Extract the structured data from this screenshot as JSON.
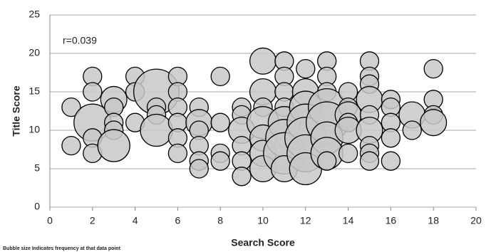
{
  "chart_data": {
    "type": "bubble",
    "x_label": "Search Score",
    "y_label": "Title Score",
    "annotation": "r=0.039",
    "footnote": "Bubble size Indicates frequency at that data point",
    "xlim": [
      0,
      20
    ],
    "xticks": [
      0,
      2,
      4,
      6,
      8,
      10,
      12,
      14,
      16,
      18,
      20
    ],
    "ylim": [
      0,
      25
    ],
    "yticks": [
      0,
      5,
      10,
      15,
      20,
      25
    ],
    "grid": true,
    "color": "#c8c8c8",
    "x": [
      1,
      1,
      2,
      2,
      2,
      2,
      2,
      3,
      3,
      3,
      3,
      3,
      4,
      4,
      4,
      5,
      5,
      5,
      5,
      6,
      6,
      6,
      6,
      6,
      6,
      7,
      7,
      7,
      7,
      7,
      7,
      8,
      8,
      8,
      8,
      9,
      9,
      9,
      9,
      9,
      9,
      10,
      10,
      10,
      10,
      10,
      10,
      10,
      11,
      11,
      11,
      11,
      11,
      11,
      11,
      11,
      12,
      12,
      12,
      12,
      12,
      12,
      12,
      13,
      13,
      13,
      13,
      13,
      13,
      13,
      13,
      14,
      14,
      14,
      14,
      14,
      14,
      15,
      15,
      15,
      15,
      15,
      15,
      15,
      15,
      15,
      16,
      16,
      16,
      16,
      16,
      17,
      17,
      18,
      18,
      18,
      18
    ],
    "values": [
      13,
      8,
      17,
      15,
      11,
      9,
      7,
      14,
      13,
      11,
      10,
      8,
      17,
      15,
      11,
      15,
      13,
      12,
      10,
      17,
      15,
      13,
      11,
      9,
      7,
      13,
      11,
      10,
      8,
      6,
      5,
      17,
      11,
      7,
      6,
      13,
      12,
      10,
      8,
      6,
      4,
      19,
      15,
      13,
      11,
      9,
      7,
      5,
      19,
      17,
      15,
      13,
      11,
      9,
      7,
      5,
      18,
      15,
      13,
      11,
      9,
      7,
      5,
      19,
      17,
      15,
      13,
      11,
      9,
      7,
      6,
      15,
      13,
      12,
      11,
      10,
      7,
      19,
      17,
      16,
      14,
      12,
      10,
      8,
      7,
      6,
      14,
      13,
      11,
      9,
      6,
      12,
      10,
      18,
      14,
      12,
      11
    ],
    "sizes": [
      1,
      1,
      1,
      1,
      4,
      1,
      1,
      2,
      1,
      1,
      1,
      3,
      1,
      1,
      1,
      6,
      1,
      1,
      3,
      1,
      1,
      1,
      1,
      1,
      1,
      1,
      2,
      1,
      1,
      1,
      1,
      1,
      1,
      1,
      1,
      1,
      1,
      2,
      1,
      1,
      1,
      2,
      2,
      1,
      3,
      2,
      2,
      2,
      1,
      1,
      1,
      1,
      3,
      4,
      5,
      2,
      1,
      2,
      3,
      4,
      5,
      4,
      3,
      1,
      1,
      1,
      4,
      5,
      3,
      3,
      1,
      1,
      1,
      2,
      1,
      2,
      1,
      1,
      1,
      1,
      2,
      1,
      2,
      1,
      1,
      1,
      1,
      1,
      1,
      1,
      1,
      2,
      1,
      1,
      1,
      1,
      2
    ]
  }
}
